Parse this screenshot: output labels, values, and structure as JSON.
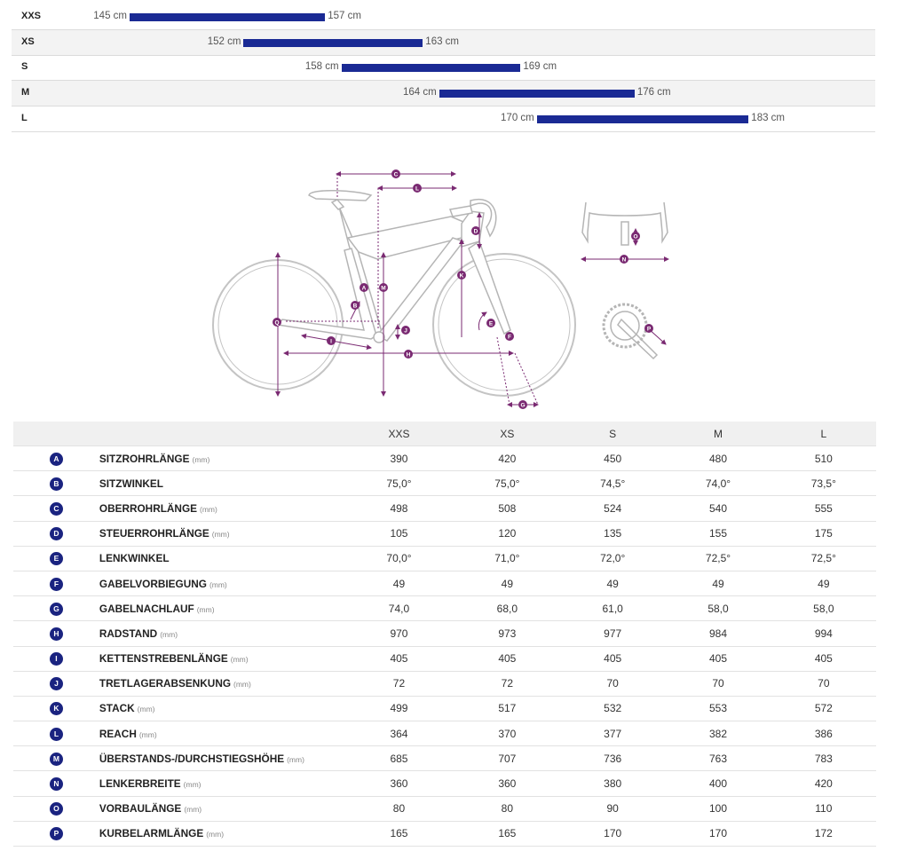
{
  "colors": {
    "bar": "#1a2a94",
    "badge": "#1a2380",
    "dimension": "#7a2a72",
    "frame": "#b5b5b5"
  },
  "size_chart": {
    "rows": [
      {
        "size": "XXS",
        "min_cm": 145,
        "max_cm": 157,
        "min_label": "145 cm",
        "max_label": "157 cm"
      },
      {
        "size": "XS",
        "min_cm": 152,
        "max_cm": 163,
        "min_label": "152 cm",
        "max_label": "163 cm"
      },
      {
        "size": "S",
        "min_cm": 158,
        "max_cm": 169,
        "min_label": "158 cm",
        "max_label": "169 cm"
      },
      {
        "size": "M",
        "min_cm": 164,
        "max_cm": 176,
        "min_label": "164 cm",
        "max_label": "176 cm"
      },
      {
        "size": "L",
        "min_cm": 170,
        "max_cm": 183,
        "min_label": "170 cm",
        "max_label": "183 cm"
      }
    ]
  },
  "diagram": {
    "labels": [
      "C",
      "L",
      "D",
      "O",
      "N",
      "A",
      "M",
      "K",
      "B",
      "Q",
      "J",
      "E",
      "F",
      "P",
      "I",
      "H",
      "G"
    ]
  },
  "geometry": {
    "sizes": [
      "XXS",
      "XS",
      "S",
      "M",
      "L"
    ],
    "rows": [
      {
        "letter": "A",
        "name": "SITZROHRLÄNGE",
        "unit": "(mm)",
        "values": [
          "390",
          "420",
          "450",
          "480",
          "510"
        ]
      },
      {
        "letter": "B",
        "name": "SITZWINKEL",
        "unit": "",
        "values": [
          "75,0°",
          "75,0°",
          "74,5°",
          "74,0°",
          "73,5°"
        ]
      },
      {
        "letter": "C",
        "name": "OBERROHRLÄNGE",
        "unit": "(mm)",
        "values": [
          "498",
          "508",
          "524",
          "540",
          "555"
        ]
      },
      {
        "letter": "D",
        "name": "STEUERROHRLÄNGE",
        "unit": "(mm)",
        "values": [
          "105",
          "120",
          "135",
          "155",
          "175"
        ]
      },
      {
        "letter": "E",
        "name": "LENKWINKEL",
        "unit": "",
        "values": [
          "70,0°",
          "71,0°",
          "72,0°",
          "72,5°",
          "72,5°"
        ]
      },
      {
        "letter": "F",
        "name": "GABELVORBIEGUNG",
        "unit": "(mm)",
        "values": [
          "49",
          "49",
          "49",
          "49",
          "49"
        ]
      },
      {
        "letter": "G",
        "name": "GABELNACHLAUF",
        "unit": "(mm)",
        "values": [
          "74,0",
          "68,0",
          "61,0",
          "58,0",
          "58,0"
        ]
      },
      {
        "letter": "H",
        "name": "RADSTAND",
        "unit": "(mm)",
        "values": [
          "970",
          "973",
          "977",
          "984",
          "994"
        ]
      },
      {
        "letter": "I",
        "name": "KETTENSTREBENLÄNGE",
        "unit": "(mm)",
        "values": [
          "405",
          "405",
          "405",
          "405",
          "405"
        ]
      },
      {
        "letter": "J",
        "name": "TRETLAGERABSENKUNG",
        "unit": "(mm)",
        "values": [
          "72",
          "72",
          "70",
          "70",
          "70"
        ]
      },
      {
        "letter": "K",
        "name": "STACK",
        "unit": "(mm)",
        "values": [
          "499",
          "517",
          "532",
          "553",
          "572"
        ]
      },
      {
        "letter": "L",
        "name": "REACH",
        "unit": "(mm)",
        "values": [
          "364",
          "370",
          "377",
          "382",
          "386"
        ]
      },
      {
        "letter": "M",
        "name": "ÜBERSTANDS-/DURCHSTIEGSHÖHE",
        "unit": "(mm)",
        "values": [
          "685",
          "707",
          "736",
          "763",
          "783"
        ]
      },
      {
        "letter": "N",
        "name": "LENKERBREITE",
        "unit": "(mm)",
        "values": [
          "360",
          "360",
          "380",
          "400",
          "420"
        ]
      },
      {
        "letter": "O",
        "name": "VORBAULÄNGE",
        "unit": "(mm)",
        "values": [
          "80",
          "80",
          "90",
          "100",
          "110"
        ]
      },
      {
        "letter": "P",
        "name": "KURBELARMLÄNGE",
        "unit": "(mm)",
        "values": [
          "165",
          "165",
          "170",
          "170",
          "172"
        ]
      }
    ]
  }
}
